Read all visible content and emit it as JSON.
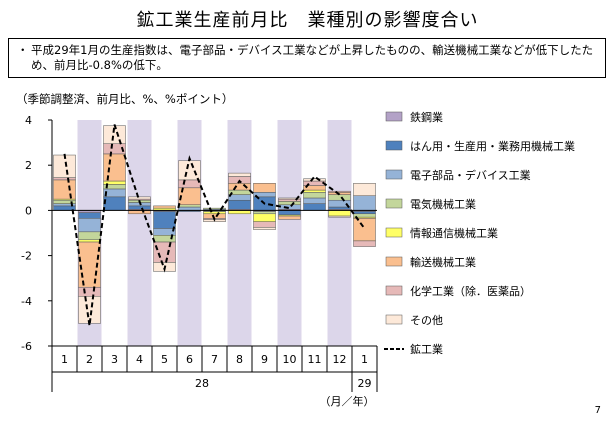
{
  "title": "鉱工業生産前月比　業種別の影響度合い",
  "summary": {
    "bullet": "・",
    "text": "平成29年1月の生産指数は、電子部品・デバイス工業などが上昇したものの、輸送機械工業などが低下したため、前月比-0.8%の低下。"
  },
  "unit_note": "（季節調整済、前月比、%、%ポイント）",
  "page_number": "7",
  "chart_data": {
    "type": "bar",
    "stacked": true,
    "categories": [
      "1",
      "2",
      "3",
      "4",
      "5",
      "6",
      "7",
      "8",
      "9",
      "10",
      "11",
      "12",
      "1"
    ],
    "year_labels": [
      {
        "label": "28",
        "from_index": 0,
        "to_index": 11
      },
      {
        "label": "29",
        "from_index": 12,
        "to_index": 12
      }
    ],
    "axis_unit_label": "（月／年）",
    "ylim": [
      -6,
      4
    ],
    "yticks": [
      4,
      2,
      0,
      -2,
      -4,
      -6
    ],
    "grid": false,
    "legend_position": "right",
    "shaded_categories": [
      1,
      3,
      5,
      7,
      9,
      11
    ],
    "shade_color": "#dcd6ea",
    "series": [
      {
        "name": "鉄鋼業",
        "color": "#b3a2c7",
        "values": [
          0.0,
          -0.1,
          0.0,
          0.05,
          -0.05,
          0.0,
          0.0,
          0.05,
          -0.05,
          0.05,
          0.0,
          0.05,
          -0.05
        ]
      },
      {
        "name": "はん用・生産用・業務用機械工業",
        "color": "#4f81bd",
        "values": [
          0.2,
          -0.25,
          0.6,
          0.15,
          -0.75,
          -0.05,
          -0.05,
          0.4,
          0.6,
          -0.2,
          0.3,
          0.1,
          -0.1
        ]
      },
      {
        "name": "電子部品・デバイス工業",
        "color": "#95b3d7",
        "values": [
          0.1,
          -0.6,
          0.35,
          0.15,
          -0.3,
          0.15,
          0.05,
          0.25,
          0.2,
          0.2,
          0.25,
          0.3,
          0.65
        ]
      },
      {
        "name": "電気機械工業",
        "color": "#c3d69b",
        "values": [
          0.15,
          -0.35,
          0.2,
          0.1,
          -0.3,
          0.1,
          0.05,
          0.2,
          -0.1,
          0.15,
          0.25,
          0.25,
          -0.15
        ]
      },
      {
        "name": "情報通信機械工業",
        "color": "#ffff66",
        "values": [
          0.05,
          -0.1,
          0.15,
          0.0,
          0.1,
          0.0,
          -0.1,
          -0.15,
          -0.35,
          -0.05,
          0.1,
          -0.25,
          -0.05
        ]
      },
      {
        "name": "輸送機械工業",
        "color": "#fabf8f",
        "values": [
          0.85,
          -2.0,
          1.2,
          -0.15,
          0.1,
          0.75,
          -0.2,
          0.3,
          0.4,
          -0.15,
          0.2,
          0.1,
          -1.0
        ]
      },
      {
        "name": "化学工業（除．医薬品）",
        "color": "#e6b9b8",
        "values": [
          0.1,
          -0.4,
          0.45,
          0.05,
          -0.9,
          0.35,
          -0.05,
          0.3,
          -0.25,
          0.1,
          0.2,
          0.05,
          -0.25
        ]
      },
      {
        "name": "その他",
        "color": "#fde9d9",
        "values": [
          1.0,
          -1.2,
          0.8,
          0.1,
          -0.4,
          0.85,
          -0.1,
          0.15,
          -0.1,
          0.05,
          0.1,
          -0.05,
          0.55
        ]
      }
    ],
    "line": {
      "name": "鉱工業",
      "values": [
        2.5,
        -5.1,
        3.8,
        0.4,
        -2.6,
        2.3,
        -0.4,
        1.3,
        0.3,
        0.1,
        1.5,
        0.7,
        -0.8
      ]
    }
  }
}
